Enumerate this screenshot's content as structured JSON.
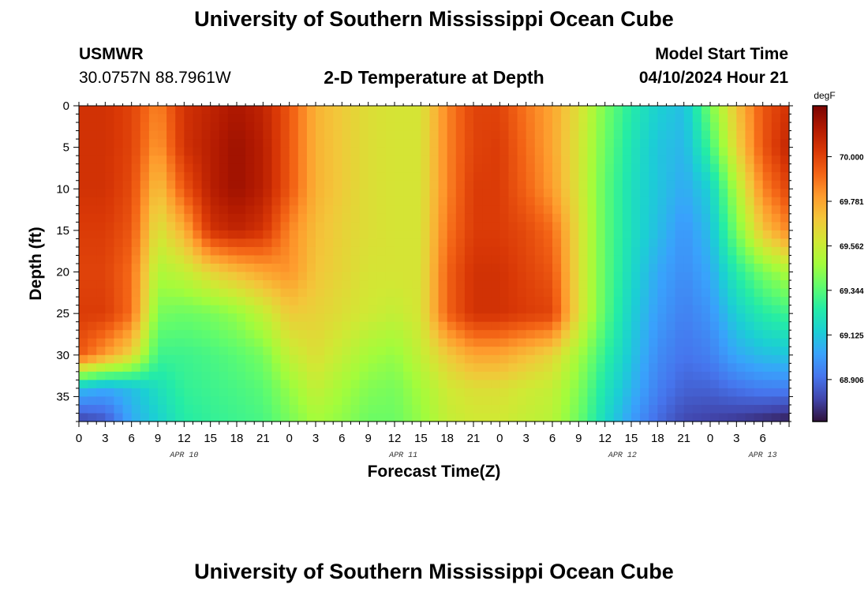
{
  "page": {
    "title_top": "University of Southern Mississippi Ocean Cube",
    "title_bottom": "University of Southern Mississippi Ocean Cube",
    "station_name": "USMWR",
    "station_coords": "30.0757N  88.7961W",
    "plot_title": "2-D Temperature at Depth",
    "model_start_label": "Model Start Time",
    "model_start_value": "04/10/2024 Hour 21"
  },
  "colors": {
    "colormap": [
      "#30123b",
      "#4145ab",
      "#4675ed",
      "#39a2fc",
      "#1bcfd4",
      "#24eca6",
      "#61fc6c",
      "#a4fc3b",
      "#d1e834",
      "#f3c63a",
      "#fe9b2d",
      "#f36315",
      "#d93806",
      "#b11901",
      "#7a0402"
    ]
  },
  "chart_data": {
    "type": "heatmap",
    "title": "2-D Temperature at Depth",
    "xlabel": "Forecast Time(Z)",
    "ylabel": "Depth (ft)",
    "x_hours_range": [
      0,
      81
    ],
    "y_range": [
      0,
      38
    ],
    "x_tick_labels": [
      "0",
      "3",
      "6",
      "9",
      "12",
      "15",
      "18",
      "21",
      "0",
      "3",
      "6",
      "9",
      "12",
      "15",
      "18",
      "21",
      "0",
      "3",
      "6",
      "9",
      "12",
      "15",
      "18",
      "21",
      "0",
      "3",
      "6"
    ],
    "y_tick_labels": [
      "0",
      "5",
      "10",
      "15",
      "20",
      "25",
      "30",
      "35"
    ],
    "y_tick_values": [
      0,
      5,
      10,
      15,
      20,
      25,
      30,
      35
    ],
    "date_labels": [
      {
        "text": "APR 10",
        "hour": 12
      },
      {
        "text": "APR 11",
        "hour": 37
      },
      {
        "text": "APR 12",
        "hour": 62
      },
      {
        "text": "APR 13",
        "hour": 78
      }
    ],
    "colorbar": {
      "unit": "degF",
      "tick_labels": [
        "70.000",
        "69.781",
        "69.562",
        "69.344",
        "69.125",
        "68.906"
      ],
      "tick_values": [
        70.0,
        69.781,
        69.562,
        69.344,
        69.125,
        68.906
      ],
      "range": [
        68.7,
        70.25
      ]
    },
    "depths_ft": [
      0,
      5,
      10,
      15,
      20,
      25,
      30,
      34,
      38
    ],
    "times_hr": [
      0,
      3,
      6,
      9,
      12,
      15,
      18,
      21,
      24,
      27,
      30,
      33,
      36,
      39,
      42,
      45,
      48,
      51,
      54,
      57,
      60,
      63,
      66,
      69,
      72,
      75,
      78,
      81
    ],
    "temperature_degF": [
      [
        70.05,
        70.05,
        70.0,
        69.85,
        70.05,
        70.1,
        70.15,
        70.1,
        69.95,
        69.75,
        69.68,
        69.62,
        69.6,
        69.6,
        69.85,
        70.0,
        70.0,
        69.88,
        69.78,
        69.62,
        69.4,
        69.25,
        69.15,
        69.1,
        69.4,
        69.7,
        69.95,
        70.05
      ],
      [
        70.05,
        70.05,
        70.0,
        69.8,
        70.05,
        70.12,
        70.18,
        70.12,
        69.95,
        69.75,
        69.68,
        69.62,
        69.6,
        69.6,
        69.85,
        70.0,
        70.02,
        69.9,
        69.78,
        69.6,
        69.38,
        69.22,
        69.12,
        69.08,
        69.3,
        69.65,
        69.95,
        70.1
      ],
      [
        70.05,
        70.05,
        69.98,
        69.7,
        69.95,
        70.12,
        70.18,
        70.12,
        69.95,
        69.75,
        69.68,
        69.62,
        69.6,
        69.6,
        69.85,
        70.02,
        70.02,
        69.92,
        69.8,
        69.6,
        69.36,
        69.2,
        69.12,
        69.05,
        69.15,
        69.5,
        69.85,
        70.0
      ],
      [
        70.02,
        70.02,
        69.95,
        69.6,
        69.75,
        70.05,
        70.1,
        70.05,
        69.85,
        69.72,
        69.66,
        69.62,
        69.6,
        69.6,
        69.88,
        70.02,
        70.02,
        69.98,
        69.9,
        69.62,
        69.36,
        69.2,
        69.1,
        69.0,
        69.1,
        69.4,
        69.7,
        69.85
      ],
      [
        70.0,
        70.0,
        69.9,
        69.5,
        69.55,
        69.65,
        69.72,
        69.78,
        69.82,
        69.7,
        69.65,
        69.6,
        69.6,
        69.6,
        69.92,
        70.05,
        70.05,
        70.0,
        69.95,
        69.62,
        69.36,
        69.18,
        69.05,
        68.98,
        69.05,
        69.25,
        69.4,
        69.5
      ],
      [
        70.02,
        70.02,
        69.9,
        69.4,
        69.38,
        69.4,
        69.45,
        69.55,
        69.68,
        69.66,
        69.62,
        69.58,
        69.55,
        69.6,
        69.92,
        70.05,
        70.05,
        70.02,
        70.0,
        69.62,
        69.35,
        69.15,
        69.02,
        68.95,
        69.0,
        69.15,
        69.25,
        69.3
      ],
      [
        69.95,
        69.8,
        69.65,
        69.3,
        69.3,
        69.32,
        69.35,
        69.4,
        69.55,
        69.62,
        69.55,
        69.48,
        69.45,
        69.55,
        69.68,
        69.78,
        69.78,
        69.72,
        69.65,
        69.48,
        69.28,
        69.12,
        68.98,
        68.92,
        68.95,
        69.05,
        69.1,
        69.12
      ],
      [
        69.1,
        69.05,
        69.1,
        69.2,
        69.28,
        69.3,
        69.32,
        69.35,
        69.45,
        69.55,
        69.48,
        69.42,
        69.4,
        69.48,
        69.58,
        69.62,
        69.62,
        69.58,
        69.55,
        69.42,
        69.22,
        69.08,
        68.95,
        68.88,
        68.88,
        68.92,
        68.95,
        68.95
      ],
      [
        68.8,
        68.85,
        69.05,
        69.15,
        69.25,
        69.28,
        69.3,
        69.32,
        69.4,
        69.48,
        69.44,
        69.38,
        69.38,
        69.45,
        69.55,
        69.58,
        69.58,
        69.55,
        69.52,
        69.38,
        69.18,
        69.02,
        68.9,
        68.82,
        68.8,
        68.78,
        68.75,
        68.72
      ]
    ]
  }
}
